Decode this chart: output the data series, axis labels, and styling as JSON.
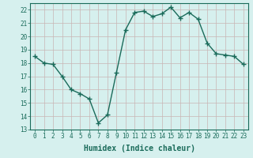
{
  "x": [
    0,
    1,
    2,
    3,
    4,
    5,
    6,
    7,
    8,
    9,
    10,
    11,
    12,
    13,
    14,
    15,
    16,
    17,
    18,
    19,
    20,
    21,
    22,
    23
  ],
  "y": [
    18.5,
    18.0,
    17.9,
    17.0,
    16.0,
    15.7,
    15.3,
    13.5,
    14.1,
    17.3,
    20.5,
    21.8,
    21.9,
    21.5,
    21.7,
    22.2,
    21.4,
    21.8,
    21.3,
    19.5,
    18.7,
    18.6,
    18.5,
    17.9
  ],
  "line_color": "#1a6b5a",
  "marker": "+",
  "marker_size": 4,
  "bg_color": "#d6f0ee",
  "grid_color_major": "#c8b4b4",
  "grid_color_minor": "#e0d0d0",
  "xlabel": "Humidex (Indice chaleur)",
  "ylim": [
    13,
    22.5
  ],
  "xlim": [
    -0.5,
    23.5
  ],
  "yticks": [
    13,
    14,
    15,
    16,
    17,
    18,
    19,
    20,
    21,
    22
  ],
  "xticks": [
    0,
    1,
    2,
    3,
    4,
    5,
    6,
    7,
    8,
    9,
    10,
    11,
    12,
    13,
    14,
    15,
    16,
    17,
    18,
    19,
    20,
    21,
    22,
    23
  ],
  "tick_label_fontsize": 5.5,
  "xlabel_fontsize": 7,
  "line_width": 1.0,
  "spine_color": "#1a6b5a"
}
